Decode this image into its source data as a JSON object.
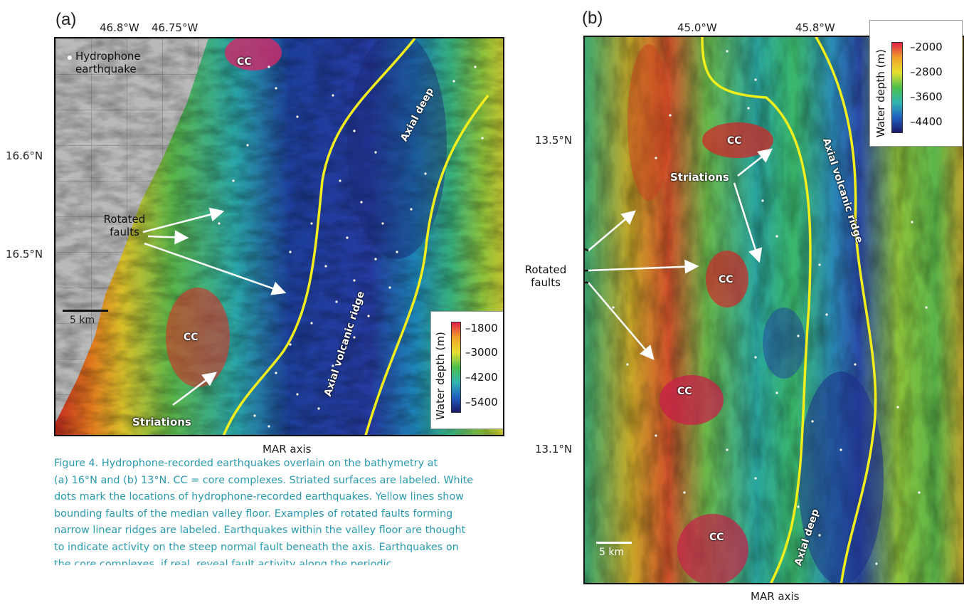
{
  "panel_a": {
    "label": "(a)",
    "lon_ticks": [
      "46.8°W",
      "46.75°W"
    ],
    "lat_ticks": [
      "16.6°N",
      "16.5°N"
    ],
    "xlabel": "MAR axis",
    "legend_point": "Hydrophone",
    "legend_point_line2": "earthquake",
    "features": {
      "cc_top": "CC",
      "cc_mid": "CC",
      "rotated_faults_1": "Rotated",
      "rotated_faults_2": "faults",
      "striations": "Striations",
      "axial_deep": "Axial deep",
      "axial_volcanic_ridge": "Axial volcanic ridge"
    },
    "scale_bar": "5 km",
    "colorbar": {
      "title": "Water depth (m)",
      "ticks": [
        "–1800",
        "–3000",
        "–4200",
        "–5400"
      ]
    }
  },
  "panel_b": {
    "label": "(b)",
    "lon_ticks": [
      "45.0°W",
      "45.8°W"
    ],
    "lat_ticks": [
      "13.5°N",
      "13.1°N"
    ],
    "xlabel": "MAR axis",
    "features": {
      "cc_1": "CC",
      "cc_2": "CC",
      "cc_3": "CC",
      "cc_4": "CC",
      "rotated_faults_1": "Rotated",
      "rotated_faults_2": "faults",
      "striations": "Striations",
      "axial_deep": "Axial deep",
      "axial_volcanic_ridge": "Axial volcanic ridge"
    },
    "scale_bar": "5 km",
    "colorbar": {
      "title": "Water depth (m)",
      "ticks": [
        "–2000",
        "–2800",
        "–3600",
        "–4400"
      ]
    }
  },
  "caption": {
    "line1": "Figure 4. Hydrophone-recorded earthquakes overlain on the bathymetry at",
    "line2": "(a) 16°N and (b) 13°N. CC = core complexes. Striated surfaces are labeled. White",
    "line3": "dots mark the locations of hydrophone-recorded earthquakes. Yellow lines show",
    "line4": "bounding faults of the median valley floor. Examples of rotated faults forming",
    "line5": "narrow linear ridges are labeled. Earthquakes within the valley floor are thought",
    "line6": "to indicate activity on the steep normal fault beneath the axis. Earthquakes on",
    "line7": "the core complexes, if real, reveal fault activity along the periodic"
  },
  "colors": {
    "ridge_lines": "#f2ee1c",
    "caption_text": "#2a9ab0",
    "deep": "#1a2a8a",
    "shallow": "#d8203a"
  }
}
